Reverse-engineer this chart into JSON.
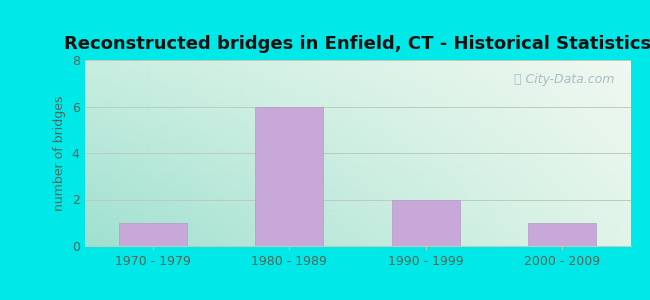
{
  "title": "Reconstructed bridges in Enfield, CT - Historical Statistics",
  "categories": [
    "1970 - 1979",
    "1980 - 1989",
    "1990 - 1999",
    "2000 - 2009"
  ],
  "values": [
    1,
    6,
    2,
    1
  ],
  "bar_color": "#c8a8d8",
  "bar_edge_color": "#b898c8",
  "ylabel": "number of bridges",
  "ylim": [
    0,
    8
  ],
  "yticks": [
    0,
    2,
    4,
    6,
    8
  ],
  "background_outer": "#00e8e8",
  "bg_top_left": "#c8eee0",
  "bg_top_right": "#e8f8f0",
  "bg_bottom_left": "#b0e8d8",
  "bg_bottom_right": "#d8f4e8",
  "grid_color": "#bbccbb",
  "title_fontsize": 13,
  "ylabel_fontsize": 9,
  "tick_fontsize": 9,
  "watermark_text": "City-Data.com",
  "watermark_color": "#a0b8c0",
  "title_color": "#111111",
  "axis_color": "#556655"
}
